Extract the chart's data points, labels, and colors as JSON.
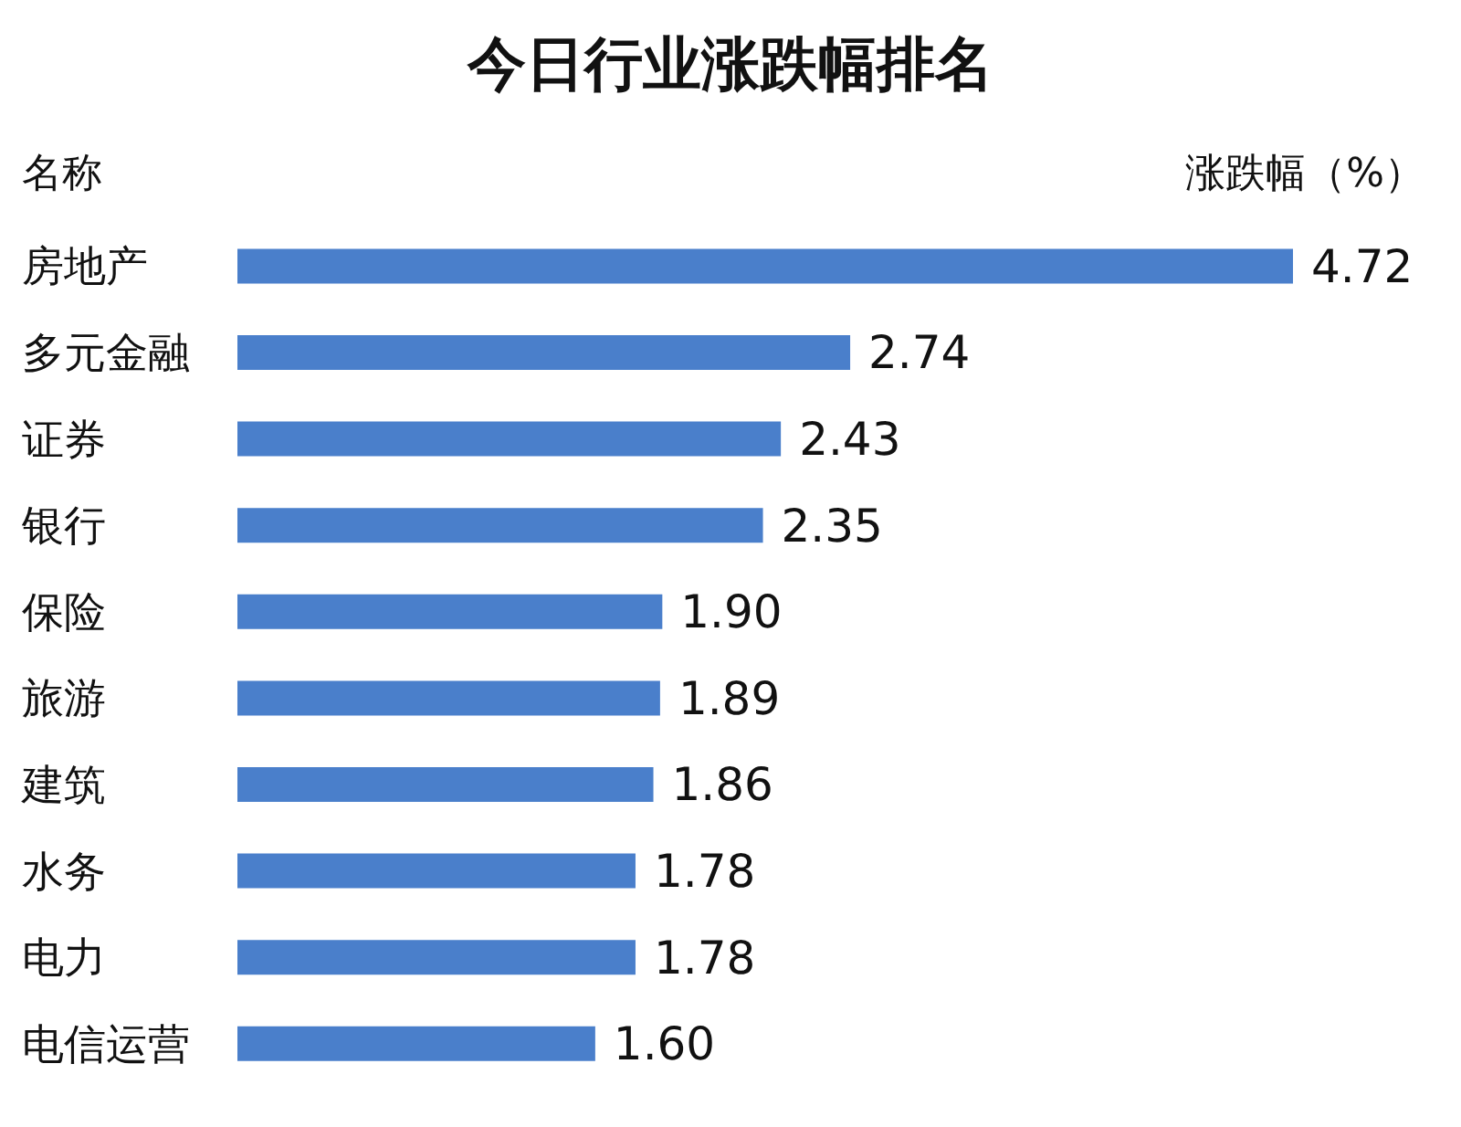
{
  "chart_data": {
    "type": "bar",
    "orientation": "horizontal",
    "title": "今日行业涨跌幅排名",
    "ylabel": "名称",
    "xlabel": "涨跌幅（%）",
    "categories": [
      "房地产",
      "多元金融",
      "证券",
      "银行",
      "保险",
      "旅游",
      "建筑",
      "水务",
      "电力",
      "电信运营"
    ],
    "values": [
      4.72,
      2.74,
      2.43,
      2.35,
      1.9,
      1.89,
      1.86,
      1.78,
      1.78,
      1.6
    ],
    "value_labels": [
      "4.72",
      "2.74",
      "2.43",
      "2.35",
      "1.90",
      "1.89",
      "1.86",
      "1.78",
      "1.78",
      "1.60"
    ],
    "color": "#4a7fcb"
  }
}
